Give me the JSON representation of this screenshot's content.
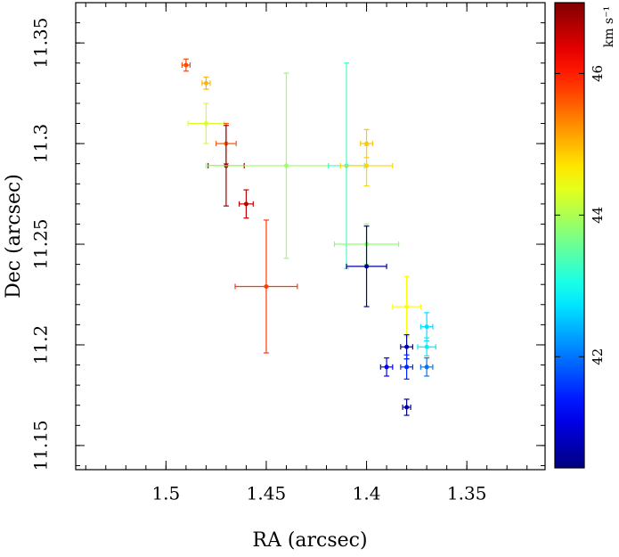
{
  "chart_data": {
    "type": "scatter",
    "xlabel": "RA (arcsec)",
    "ylabel": "Dec (arcsec)",
    "colorbar_label": "km s⁻¹",
    "xlim": [
      1.545,
      1.311
    ],
    "ylim": [
      11.138,
      11.37
    ],
    "xticks": [
      1.5,
      1.45,
      1.4,
      1.35
    ],
    "yticks": [
      11.15,
      11.2,
      11.25,
      11.3,
      11.35
    ],
    "clim": [
      40.43,
      47.0
    ],
    "cticks": [
      42,
      44,
      46
    ],
    "colormap": "jet",
    "x": [
      1.49,
      1.48,
      1.48,
      1.47,
      1.47,
      1.46,
      1.45,
      1.44,
      1.41,
      1.4,
      1.4,
      1.4,
      1.4,
      1.38,
      1.38,
      1.37,
      1.37,
      1.39,
      1.38,
      1.37,
      1.38
    ],
    "y": [
      11.339,
      11.33,
      11.31,
      11.3,
      11.289,
      11.27,
      11.229,
      11.289,
      11.289,
      11.3,
      11.289,
      11.25,
      11.239,
      11.219,
      11.199,
      11.209,
      11.199,
      11.189,
      11.189,
      11.189,
      11.169
    ],
    "xerr": [
      0.002,
      0.002,
      0.009,
      0.005,
      0.009,
      0.0035,
      0.0155,
      0.04,
      0.009,
      0.003,
      0.013,
      0.016,
      0.01,
      0.007,
      0.003,
      0.003,
      0.0045,
      0.003,
      0.003,
      0.003,
      0.002
    ],
    "yerr": [
      0.003,
      0.003,
      0.01,
      0.01,
      0.02,
      0.007,
      0.033,
      0.046,
      0.051,
      0.007,
      0.01,
      0.01,
      0.02,
      0.015,
      0.006,
      0.007,
      0.0045,
      0.0045,
      0.006,
      0.0045,
      0.004
    ],
    "c": [
      45.7,
      45.0,
      44.3,
      45.6,
      46.8,
      46.6,
      45.8,
      43.9,
      43.3,
      44.9,
      44.8,
      43.8,
      40.6,
      44.5,
      40.7,
      42.7,
      42.8,
      41.2,
      41.5,
      42.0,
      40.6
    ]
  }
}
